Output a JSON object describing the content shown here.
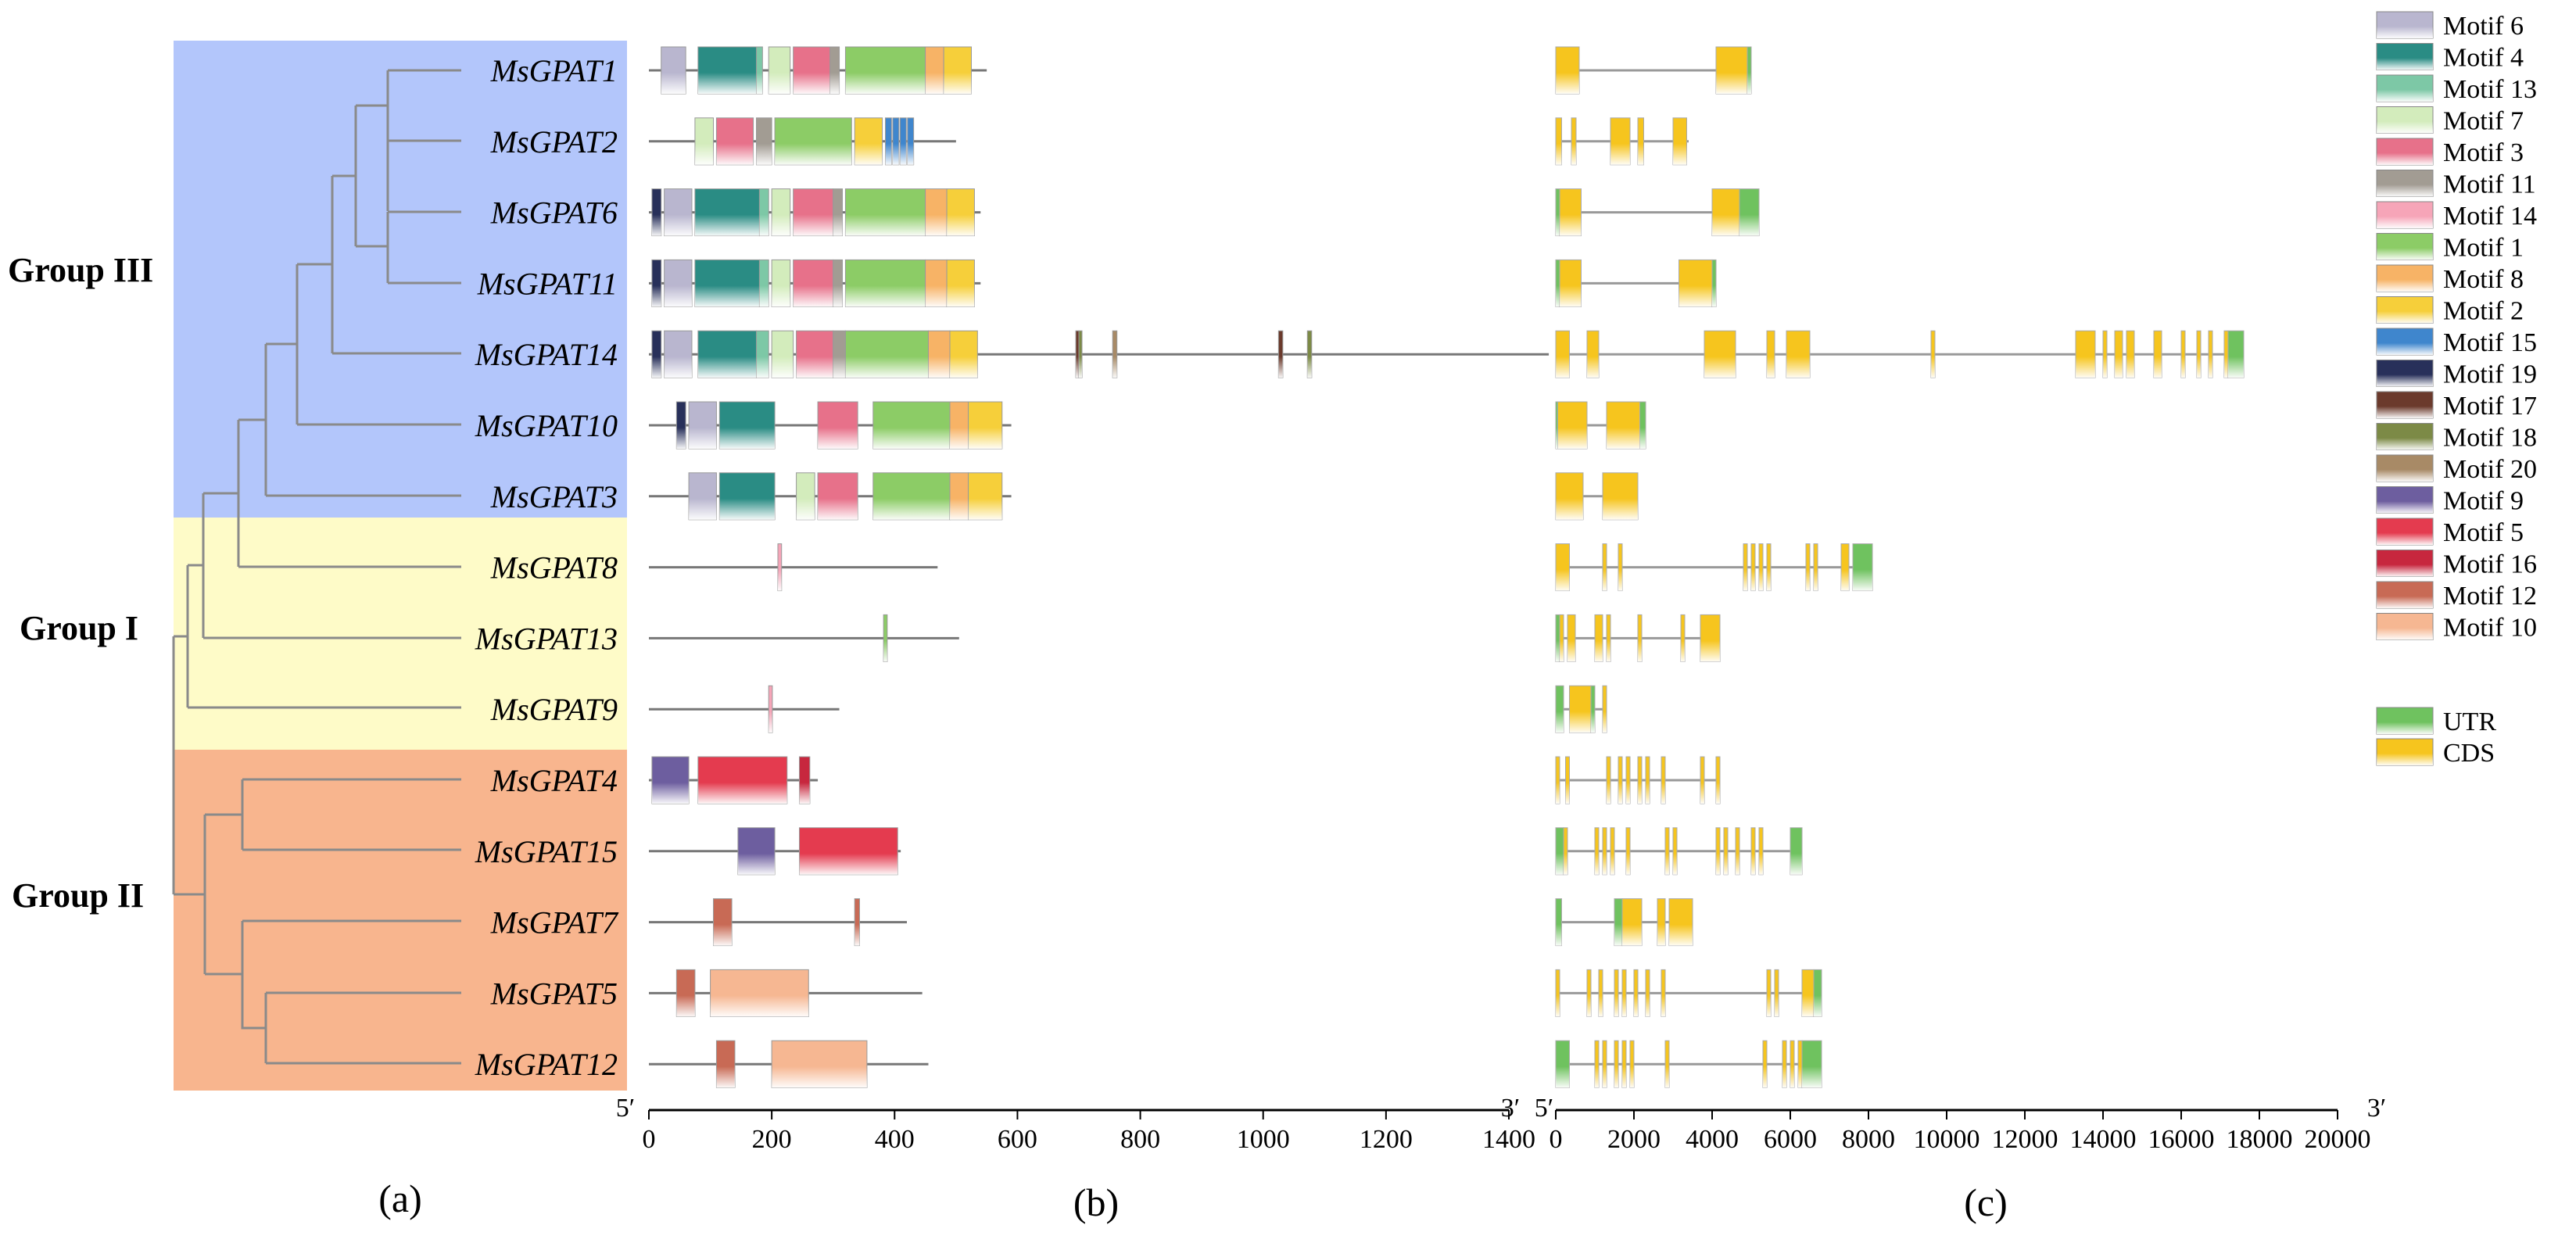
{
  "groups": [
    {
      "label": "Group III",
      "color": "#b3c6fb"
    },
    {
      "label": "Group I",
      "color": "#fefbc8"
    },
    {
      "label": "Group II",
      "color": "#f8b58e"
    }
  ],
  "genes": [
    "MsGPAT1",
    "MsGPAT2",
    "MsGPAT6",
    "MsGPAT11",
    "MsGPAT14",
    "MsGPAT10",
    "MsGPAT3",
    "MsGPAT8",
    "MsGPAT13",
    "MsGPAT9",
    "MsGPAT4",
    "MsGPAT15",
    "MsGPAT7",
    "MsGPAT5",
    "MsGPAT12"
  ],
  "panel_labels": [
    "(a)",
    "(b)",
    "(c)"
  ],
  "axis_b": {
    "ticks": [
      "0",
      "200",
      "400",
      "600",
      "800",
      "1000",
      "1200",
      "1400"
    ],
    "start_label": "5′",
    "end_label": "3′"
  },
  "axis_c": {
    "ticks": [
      "0",
      "2000",
      "4000",
      "6000",
      "8000",
      "10000",
      "12000",
      "14000",
      "16000",
      "18000",
      "20000"
    ],
    "start_label": "5′",
    "end_label": "3′"
  },
  "motif_legend": [
    {
      "label": "Motif 6",
      "color": "#b9b6cf"
    },
    {
      "label": "Motif 4",
      "color": "#2a8c84"
    },
    {
      "label": "Motif 13",
      "color": "#7dc8a6"
    },
    {
      "label": "Motif 7",
      "color": "#d3ecbc"
    },
    {
      "label": "Motif 3",
      "color": "#e7718a"
    },
    {
      "label": "Motif 11",
      "color": "#a29c93"
    },
    {
      "label": "Motif 14",
      "color": "#f6a5b8"
    },
    {
      "label": "Motif 1",
      "color": "#8ccc66"
    },
    {
      "label": "Motif 8",
      "color": "#f7b366"
    },
    {
      "label": "Motif 2",
      "color": "#f6cf3a"
    },
    {
      "label": "Motif 15",
      "color": "#3f86cd"
    },
    {
      "label": "Motif 19",
      "color": "#28305a"
    },
    {
      "label": "Motif 17",
      "color": "#6b3a2c"
    },
    {
      "label": "Motif 18",
      "color": "#7c8a46"
    },
    {
      "label": "Motif 20",
      "color": "#a88a66"
    },
    {
      "label": "Motif 9",
      "color": "#6d5e9f"
    },
    {
      "label": "Motif 5",
      "color": "#e43b4f"
    },
    {
      "label": "Motif 16",
      "color": "#c7273e"
    },
    {
      "label": "Motif 12",
      "color": "#c86a55"
    },
    {
      "label": "Motif 10",
      "color": "#f6b792"
    }
  ],
  "structure_legend": [
    {
      "label": "UTR",
      "color": "#6fc25f"
    },
    {
      "label": "CDS",
      "color": "#f6c51e"
    }
  ],
  "motif_tracks": [
    {
      "length": 550,
      "motifs": [
        [
          20,
          60,
          "Motif 6"
        ],
        [
          80,
          175,
          "Motif 4"
        ],
        [
          175,
          185,
          "Motif 13"
        ],
        [
          195,
          230,
          "Motif 7"
        ],
        [
          235,
          295,
          "Motif 3"
        ],
        [
          295,
          310,
          "Motif 11"
        ],
        [
          320,
          450,
          "Motif 1"
        ],
        [
          450,
          480,
          "Motif 8"
        ],
        [
          480,
          525,
          "Motif 2"
        ]
      ]
    },
    {
      "length": 500,
      "motifs": [
        [
          75,
          105,
          "Motif 7"
        ],
        [
          110,
          170,
          "Motif 3"
        ],
        [
          175,
          200,
          "Motif 11"
        ],
        [
          205,
          330,
          "Motif 1"
        ],
        [
          335,
          380,
          "Motif 2"
        ],
        [
          385,
          395,
          "Motif 15"
        ],
        [
          397,
          407,
          "Motif 15"
        ],
        [
          409,
          419,
          "Motif 15"
        ],
        [
          421,
          431,
          "Motif 15"
        ]
      ]
    },
    {
      "length": 540,
      "motifs": [
        [
          5,
          20,
          "Motif 19"
        ],
        [
          25,
          70,
          "Motif 6"
        ],
        [
          75,
          180,
          "Motif 4"
        ],
        [
          180,
          195,
          "Motif 13"
        ],
        [
          200,
          230,
          "Motif 7"
        ],
        [
          235,
          300,
          "Motif 3"
        ],
        [
          300,
          315,
          "Motif 11"
        ],
        [
          320,
          450,
          "Motif 1"
        ],
        [
          450,
          485,
          "Motif 8"
        ],
        [
          485,
          530,
          "Motif 2"
        ]
      ]
    },
    {
      "length": 540,
      "motifs": [
        [
          5,
          20,
          "Motif 19"
        ],
        [
          25,
          70,
          "Motif 6"
        ],
        [
          75,
          180,
          "Motif 4"
        ],
        [
          180,
          195,
          "Motif 13"
        ],
        [
          200,
          230,
          "Motif 7"
        ],
        [
          235,
          300,
          "Motif 3"
        ],
        [
          300,
          315,
          "Motif 11"
        ],
        [
          320,
          450,
          "Motif 1"
        ],
        [
          450,
          485,
          "Motif 8"
        ],
        [
          485,
          530,
          "Motif 2"
        ]
      ]
    },
    {
      "length": 1465,
      "motifs": [
        [
          5,
          20,
          "Motif 19"
        ],
        [
          25,
          70,
          "Motif 6"
        ],
        [
          80,
          175,
          "Motif 4"
        ],
        [
          175,
          195,
          "Motif 13"
        ],
        [
          200,
          235,
          "Motif 7"
        ],
        [
          240,
          300,
          "Motif 3"
        ],
        [
          300,
          320,
          "Motif 11"
        ],
        [
          320,
          455,
          "Motif 1"
        ],
        [
          455,
          490,
          "Motif 8"
        ],
        [
          490,
          535,
          "Motif 2"
        ],
        [
          695,
          700,
          "Motif 17"
        ],
        [
          700,
          705,
          "Motif 18"
        ],
        [
          755,
          762,
          "Motif 20"
        ],
        [
          1025,
          1032,
          "Motif 17"
        ],
        [
          1072,
          1079,
          "Motif 18"
        ]
      ]
    },
    {
      "length": 590,
      "motifs": [
        [
          45,
          60,
          "Motif 19"
        ],
        [
          65,
          110,
          "Motif 6"
        ],
        [
          115,
          205,
          "Motif 4"
        ],
        [
          275,
          340,
          "Motif 3"
        ],
        [
          365,
          490,
          "Motif 1"
        ],
        [
          490,
          520,
          "Motif 8"
        ],
        [
          520,
          575,
          "Motif 2"
        ]
      ]
    },
    {
      "length": 590,
      "motifs": [
        [
          65,
          110,
          "Motif 6"
        ],
        [
          115,
          205,
          "Motif 4"
        ],
        [
          240,
          270,
          "Motif 7"
        ],
        [
          275,
          340,
          "Motif 3"
        ],
        [
          365,
          490,
          "Motif 1"
        ],
        [
          490,
          520,
          "Motif 8"
        ],
        [
          520,
          575,
          "Motif 2"
        ]
      ]
    },
    {
      "length": 470,
      "motifs": [
        [
          210,
          216,
          "Motif 14"
        ]
      ]
    },
    {
      "length": 505,
      "motifs": [
        [
          382,
          388,
          "Motif 1"
        ]
      ]
    },
    {
      "length": 310,
      "motifs": [
        [
          195,
          201,
          "Motif 14"
        ]
      ]
    },
    {
      "length": 275,
      "motifs": [
        [
          5,
          65,
          "Motif 9"
        ],
        [
          80,
          225,
          "Motif 5"
        ],
        [
          245,
          262,
          "Motif 16"
        ]
      ]
    },
    {
      "length": 410,
      "motifs": [
        [
          145,
          205,
          "Motif 9"
        ],
        [
          245,
          405,
          "Motif 5"
        ]
      ]
    },
    {
      "length": 420,
      "motifs": [
        [
          105,
          135,
          "Motif 12"
        ],
        [
          335,
          343,
          "Motif 12"
        ]
      ]
    },
    {
      "length": 445,
      "motifs": [
        [
          45,
          75,
          "Motif 12"
        ],
        [
          100,
          260,
          "Motif 10"
        ]
      ]
    },
    {
      "length": 455,
      "motifs": [
        [
          110,
          140,
          "Motif 12"
        ],
        [
          200,
          355,
          "Motif 10"
        ]
      ]
    }
  ],
  "gene_structures": [
    {
      "length": 5000,
      "parts": [
        [
          0,
          600,
          "CDS"
        ],
        [
          4100,
          4900,
          "CDS"
        ],
        [
          4900,
          5000,
          "UTR"
        ]
      ]
    },
    {
      "length": 3400,
      "parts": [
        [
          0,
          150,
          "CDS"
        ],
        [
          400,
          520,
          "CDS"
        ],
        [
          1400,
          1900,
          "CDS"
        ],
        [
          2100,
          2250,
          "CDS"
        ],
        [
          3000,
          3350,
          "CDS"
        ]
      ]
    },
    {
      "length": 5200,
      "parts": [
        [
          0,
          100,
          "UTR"
        ],
        [
          100,
          650,
          "CDS"
        ],
        [
          4000,
          4700,
          "CDS"
        ],
        [
          4700,
          5200,
          "UTR"
        ]
      ]
    },
    {
      "length": 4100,
      "parts": [
        [
          0,
          100,
          "UTR"
        ],
        [
          100,
          650,
          "CDS"
        ],
        [
          3150,
          4000,
          "CDS"
        ],
        [
          4000,
          4100,
          "UTR"
        ]
      ]
    },
    {
      "length": 17600,
      "parts": [
        [
          0,
          350,
          "CDS"
        ],
        [
          800,
          1100,
          "CDS"
        ],
        [
          3800,
          4600,
          "CDS"
        ],
        [
          5400,
          5600,
          "CDS"
        ],
        [
          5900,
          6500,
          "CDS"
        ],
        [
          9600,
          9700,
          "CDS"
        ],
        [
          13300,
          13800,
          "CDS"
        ],
        [
          14000,
          14100,
          "CDS"
        ],
        [
          14300,
          14500,
          "CDS"
        ],
        [
          14600,
          14800,
          "CDS"
        ],
        [
          15300,
          15500,
          "CDS"
        ],
        [
          16000,
          16100,
          "CDS"
        ],
        [
          16400,
          16500,
          "CDS"
        ],
        [
          16700,
          16800,
          "CDS"
        ],
        [
          17100,
          17200,
          "CDS"
        ],
        [
          17200,
          17600,
          "UTR"
        ]
      ]
    },
    {
      "length": 2300,
      "parts": [
        [
          0,
          50,
          "UTR"
        ],
        [
          50,
          800,
          "CDS"
        ],
        [
          1300,
          2150,
          "CDS"
        ],
        [
          2150,
          2300,
          "UTR"
        ]
      ]
    },
    {
      "length": 2100,
      "parts": [
        [
          0,
          700,
          "CDS"
        ],
        [
          1200,
          2100,
          "CDS"
        ]
      ]
    },
    {
      "length": 8100,
      "parts": [
        [
          0,
          350,
          "CDS"
        ],
        [
          1200,
          1300,
          "CDS"
        ],
        [
          1600,
          1700,
          "CDS"
        ],
        [
          4800,
          4900,
          "CDS"
        ],
        [
          5000,
          5100,
          "CDS"
        ],
        [
          5200,
          5300,
          "CDS"
        ],
        [
          5400,
          5500,
          "CDS"
        ],
        [
          6400,
          6500,
          "CDS"
        ],
        [
          6600,
          6700,
          "CDS"
        ],
        [
          7300,
          7500,
          "CDS"
        ],
        [
          7600,
          8100,
          "UTR"
        ]
      ]
    },
    {
      "length": 4200,
      "parts": [
        [
          0,
          100,
          "UTR"
        ],
        [
          100,
          200,
          "CDS"
        ],
        [
          300,
          500,
          "CDS"
        ],
        [
          1000,
          1200,
          "CDS"
        ],
        [
          1300,
          1400,
          "CDS"
        ],
        [
          2100,
          2200,
          "CDS"
        ],
        [
          3200,
          3300,
          "CDS"
        ],
        [
          3700,
          4200,
          "CDS"
        ]
      ]
    },
    {
      "length": 1300,
      "parts": [
        [
          0,
          200,
          "UTR"
        ],
        [
          350,
          900,
          "CDS"
        ],
        [
          900,
          1000,
          "UTR"
        ],
        [
          1200,
          1300,
          "CDS"
        ]
      ]
    },
    {
      "length": 4200,
      "parts": [
        [
          0,
          100,
          "CDS"
        ],
        [
          250,
          350,
          "CDS"
        ],
        [
          1300,
          1400,
          "CDS"
        ],
        [
          1600,
          1700,
          "CDS"
        ],
        [
          1800,
          1900,
          "CDS"
        ],
        [
          2100,
          2200,
          "CDS"
        ],
        [
          2300,
          2400,
          "CDS"
        ],
        [
          2700,
          2800,
          "CDS"
        ],
        [
          3700,
          3800,
          "CDS"
        ],
        [
          4100,
          4200,
          "CDS"
        ]
      ]
    },
    {
      "length": 6300,
      "parts": [
        [
          0,
          200,
          "UTR"
        ],
        [
          200,
          300,
          "CDS"
        ],
        [
          1000,
          1100,
          "CDS"
        ],
        [
          1200,
          1300,
          "CDS"
        ],
        [
          1400,
          1500,
          "CDS"
        ],
        [
          1800,
          1900,
          "CDS"
        ],
        [
          2800,
          2900,
          "CDS"
        ],
        [
          3000,
          3100,
          "CDS"
        ],
        [
          4100,
          4200,
          "CDS"
        ],
        [
          4300,
          4400,
          "CDS"
        ],
        [
          4600,
          4700,
          "CDS"
        ],
        [
          5000,
          5100,
          "CDS"
        ],
        [
          5200,
          5300,
          "CDS"
        ],
        [
          6000,
          6300,
          "UTR"
        ]
      ]
    },
    {
      "length": 3500,
      "parts": [
        [
          0,
          150,
          "UTR"
        ],
        [
          1500,
          1700,
          "UTR"
        ],
        [
          1700,
          2200,
          "CDS"
        ],
        [
          2600,
          2800,
          "CDS"
        ],
        [
          2900,
          3500,
          "CDS"
        ]
      ]
    },
    {
      "length": 6800,
      "parts": [
        [
          0,
          100,
          "CDS"
        ],
        [
          800,
          900,
          "CDS"
        ],
        [
          1100,
          1200,
          "CDS"
        ],
        [
          1500,
          1600,
          "CDS"
        ],
        [
          1700,
          1800,
          "CDS"
        ],
        [
          2000,
          2100,
          "CDS"
        ],
        [
          2300,
          2400,
          "CDS"
        ],
        [
          2700,
          2800,
          "CDS"
        ],
        [
          5400,
          5500,
          "CDS"
        ],
        [
          5600,
          5700,
          "CDS"
        ],
        [
          6300,
          6600,
          "CDS"
        ],
        [
          6600,
          6800,
          "UTR"
        ]
      ]
    },
    {
      "length": 6800,
      "parts": [
        [
          0,
          350,
          "UTR"
        ],
        [
          1000,
          1100,
          "CDS"
        ],
        [
          1200,
          1300,
          "CDS"
        ],
        [
          1500,
          1600,
          "CDS"
        ],
        [
          1700,
          1800,
          "CDS"
        ],
        [
          1900,
          2000,
          "CDS"
        ],
        [
          2800,
          2900,
          "CDS"
        ],
        [
          5300,
          5400,
          "CDS"
        ],
        [
          5800,
          5900,
          "CDS"
        ],
        [
          6000,
          6100,
          "CDS"
        ],
        [
          6200,
          6300,
          "CDS"
        ],
        [
          6300,
          6800,
          "UTR"
        ]
      ]
    }
  ]
}
